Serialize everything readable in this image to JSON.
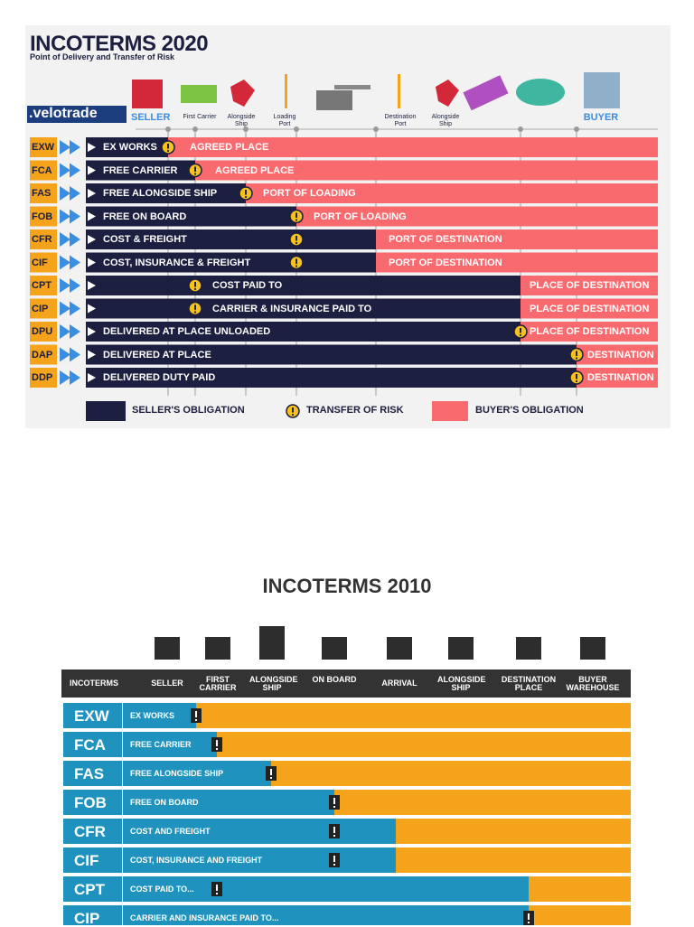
{
  "top": {
    "title": "INCOTERMS 2020",
    "subtitle": "Point of Delivery and Transfer of Risk",
    "logo": ".velotrade",
    "stages": [
      "SELLER",
      "First Carrier",
      "Alongside Ship",
      "Loading Port",
      "Destination Port",
      "Alongside Ship",
      "BUYER"
    ],
    "rows": [
      {
        "code": "EXW",
        "name": "EX WORKS",
        "buyer": "AGREED PLACE"
      },
      {
        "code": "FCA",
        "name": "FREE CARRIER",
        "buyer": "AGREED PLACE"
      },
      {
        "code": "FAS",
        "name": "FREE ALONGSIDE SHIP",
        "buyer": "PORT OF LOADING"
      },
      {
        "code": "FOB",
        "name": "FREE ON BOARD",
        "buyer": "PORT OF LOADING"
      },
      {
        "code": "CFR",
        "name": "COST & FREIGHT",
        "buyer": "PORT OF DESTINATION"
      },
      {
        "code": "CIF",
        "name": "COST, INSURANCE & FREIGHT",
        "buyer": "PORT OF DESTINATION"
      },
      {
        "code": "CPT",
        "name": "COST PAID TO",
        "buyer": "PLACE OF DESTINATION"
      },
      {
        "code": "CIP",
        "name": "CARRIER & INSURANCE PAID TO",
        "buyer": "PLACE OF DESTINATION"
      },
      {
        "code": "DPU",
        "name": "DELIVERED AT PLACE UNLOADED",
        "buyer": "PLACE OF DESTINATION"
      },
      {
        "code": "DAP",
        "name": "DELIVERED AT PLACE",
        "buyer": "DESTINATION"
      },
      {
        "code": "DDP",
        "name": "DELIVERED DUTY PAID",
        "buyer": "DESTINATION"
      }
    ],
    "legend": {
      "seller": "SELLER'S OBLIGATION",
      "risk": "TRANSFER OF RISK",
      "buyer": "BUYER'S OBLIGATION"
    }
  },
  "bottom": {
    "title": "INCOTERMS 2010",
    "headers": [
      "INCOTERMS",
      "SELLER",
      "FIRST CARRIER",
      "ALONGSIDE SHIP",
      "ON BOARD",
      "ARRIVAL",
      "ALONGSIDE SHIP",
      "DESTINATION PLACE",
      "BUYER WAREHOUSE"
    ],
    "rows": [
      {
        "code": "EXW",
        "name": "EX WORKS"
      },
      {
        "code": "FCA",
        "name": "FREE CARRIER"
      },
      {
        "code": "FAS",
        "name": "FREE ALONGSIDE SHIP"
      },
      {
        "code": "FOB",
        "name": "FREE ON BOARD"
      },
      {
        "code": "CFR",
        "name": "COST AND FREIGHT"
      },
      {
        "code": "CIF",
        "name": "COST, INSURANCE AND FREIGHT"
      },
      {
        "code": "CPT",
        "name": "COST PAID TO..."
      },
      {
        "code": "CIP",
        "name": "CARRIER AND INSURANCE PAID TO..."
      }
    ]
  }
}
